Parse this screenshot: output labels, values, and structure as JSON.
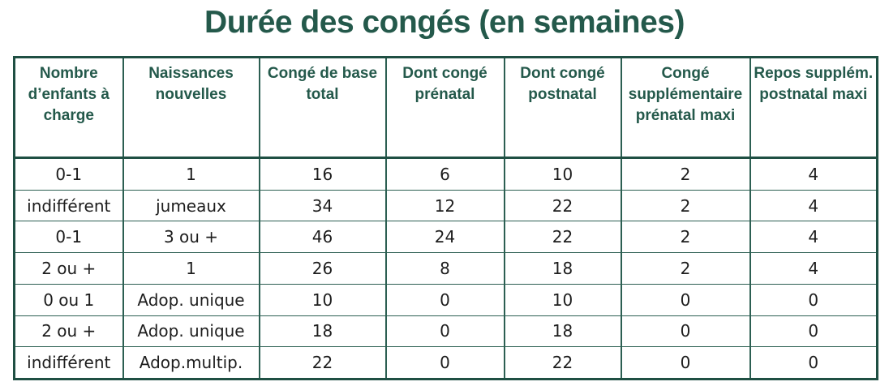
{
  "title": "Durée des congés (en semaines)",
  "table": {
    "headers": [
      "Nombre d’enfants à charge",
      "Naissances nouvelles",
      "Congé de base total",
      "Dont congé prénatal",
      "Dont congé postnatal",
      "Congé supplémentaire prénatal maxi",
      "Repos supplém. postnatal maxi"
    ],
    "rows": [
      [
        "0-1",
        "1",
        "16",
        "6",
        "10",
        "2",
        "4"
      ],
      [
        "indifférent",
        "jumeaux",
        "34",
        "12",
        "22",
        "2",
        "4"
      ],
      [
        "0-1",
        "3 ou +",
        "46",
        "24",
        "22",
        "2",
        "4"
      ],
      [
        "2 ou +",
        "1",
        "26",
        "8",
        "18",
        "2",
        "4"
      ],
      [
        "0 ou 1",
        "Adop. unique",
        "10",
        "0",
        "10",
        "0",
        "0"
      ],
      [
        "2 ou +",
        "Adop. unique",
        "18",
        "0",
        "18",
        "0",
        "0"
      ],
      [
        "indifférent",
        "Adop.multip.",
        "22",
        "0",
        "22",
        "0",
        "0"
      ]
    ]
  }
}
